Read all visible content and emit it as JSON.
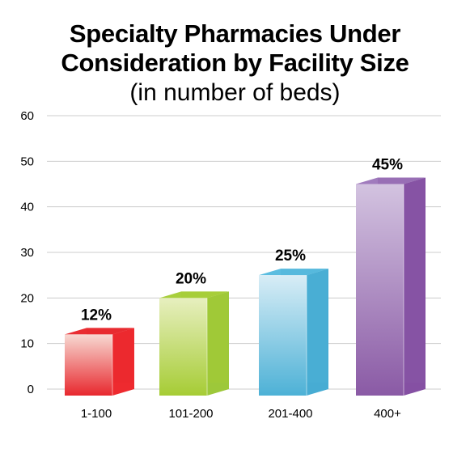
{
  "chart_data": {
    "type": "bar",
    "title_line1": "Specialty Pharmacies Under",
    "title_line2": "Consideration by Facility Size",
    "subtitle": "(in number of beds)",
    "categories": [
      "1-100",
      "101-200",
      "201-400",
      "400+"
    ],
    "values": [
      12,
      20,
      25,
      45
    ],
    "data_labels": [
      "12%",
      "20%",
      "25%",
      "45%"
    ],
    "ylim": [
      0,
      60
    ],
    "yticks": [
      "0",
      "10",
      "20",
      "30",
      "40",
      "50",
      "60"
    ],
    "grid": true,
    "colors": {
      "bars": [
        {
          "front_top": "#f7d9d2",
          "front_bottom": "#e8282e",
          "side": "#ee2a2f",
          "top": "#e92d32"
        },
        {
          "front_top": "#e7efbf",
          "front_bottom": "#a6cc35",
          "side": "#9dc83a",
          "top": "#a8cf3c"
        },
        {
          "front_top": "#d8edf6",
          "front_bottom": "#4db1d6",
          "side": "#47acd3",
          "top": "#5bbde0"
        },
        {
          "front_top": "#d3c3e0",
          "front_bottom": "#8a5aa5",
          "side": "#8550a3",
          "top": "#a07bbd"
        }
      ],
      "grid": "#cccccc"
    }
  }
}
